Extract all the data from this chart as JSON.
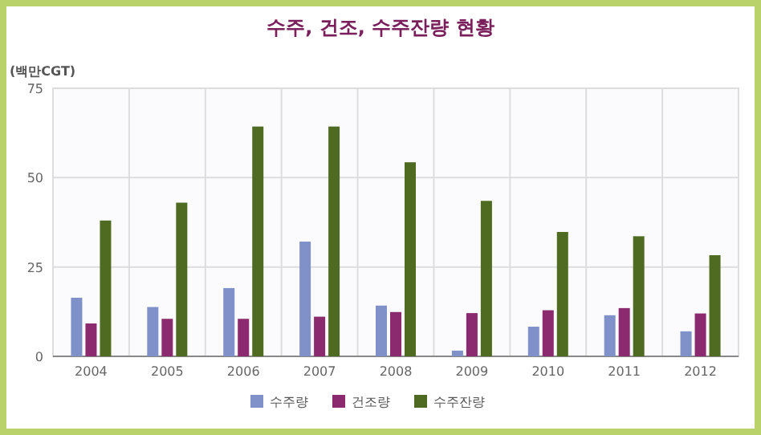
{
  "chart_data": {
    "type": "bar",
    "title": "수주, 건조, 수주잔량 현황",
    "ylabel": "(백만CGT)",
    "categories": [
      "2004",
      "2005",
      "2006",
      "2007",
      "2008",
      "2009",
      "2010",
      "2011",
      "2012"
    ],
    "series": [
      {
        "name": "수주량",
        "color": "#8090c8",
        "values": [
          16.4,
          13.8,
          19.1,
          32.1,
          14.2,
          1.6,
          8.3,
          11.5,
          7.0
        ]
      },
      {
        "name": "건조량",
        "color": "#8b2a6e",
        "values": [
          9.2,
          10.5,
          10.5,
          11.1,
          12.4,
          12.1,
          12.9,
          13.5,
          12.0
        ]
      },
      {
        "name": "수주잔량",
        "color": "#4f6b22",
        "values": [
          38.0,
          43.0,
          64.3,
          64.3,
          54.3,
          43.5,
          34.8,
          33.6,
          28.3
        ]
      }
    ],
    "ylim": [
      0,
      75
    ],
    "yticks": [
      0,
      25,
      50,
      75
    ],
    "grid": true,
    "legend": "bottom"
  }
}
